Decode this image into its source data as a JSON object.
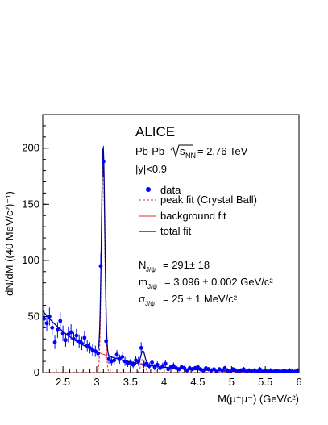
{
  "chart_data": {
    "type": "scatter",
    "experiment": "ALICE",
    "system": "Pb-Pb",
    "energy_symbol": "s",
    "energy_sub": "NN",
    "energy_value": "= 2.76 TeV",
    "rapidity": "|y|<0.9",
    "xlabel": "M(μ⁺μ⁻) (GeV/c²)",
    "ylabel": "dN/dM ((40 MeV/c²)⁻¹)",
    "xlim": [
      2.2,
      6.0
    ],
    "ylim": [
      0,
      230
    ],
    "xticks": [
      2.5,
      3,
      3.5,
      4,
      4.5,
      5,
      5.5,
      6
    ],
    "xtick_labels": [
      "2.5",
      "3",
      "3.5",
      "4",
      "4.5",
      "5",
      "5.5",
      "6"
    ],
    "yticks": [
      0,
      50,
      100,
      150,
      200
    ],
    "ytick_labels": [
      "0",
      "50",
      "100",
      "150",
      "200"
    ],
    "legend": [
      {
        "label": "data",
        "style": "marker",
        "color": "#0000ff"
      },
      {
        "label": "peak fit (Crystal Ball)",
        "style": "dashed",
        "color": "#e03030"
      },
      {
        "label": "background fit",
        "style": "solid",
        "color": "#e03030"
      },
      {
        "label": "total fit",
        "style": "solid",
        "color": "#000080"
      }
    ],
    "legend_position": "top-right",
    "results": {
      "n_label": "N",
      "n_sub": "J/ψ",
      "n_value": "= 291± 18",
      "m_label": "m",
      "m_sub": "J/ψ",
      "m_value": "= 3.096 ± 0.002 GeV/c²",
      "s_label": "σ",
      "s_sub": "J/ψ",
      "s_value": "= 25 ± 1 MeV/c²"
    },
    "series": [
      {
        "name": "data",
        "x": [
          2.22,
          2.26,
          2.3,
          2.34,
          2.38,
          2.42,
          2.46,
          2.5,
          2.54,
          2.58,
          2.62,
          2.66,
          2.7,
          2.74,
          2.78,
          2.82,
          2.86,
          2.9,
          2.94,
          2.98,
          3.02,
          3.06,
          3.1,
          3.14,
          3.18,
          3.22,
          3.26,
          3.3,
          3.34,
          3.38,
          3.42,
          3.46,
          3.5,
          3.54,
          3.58,
          3.62,
          3.66,
          3.7,
          3.74,
          3.78,
          3.82,
          3.86,
          3.9,
          3.94,
          3.98,
          4.02,
          4.06,
          4.1,
          4.14,
          4.18,
          4.22,
          4.26,
          4.3,
          4.34,
          4.38,
          4.42,
          4.46,
          4.5,
          4.54,
          4.58,
          4.62,
          4.66,
          4.7,
          4.74,
          4.78,
          4.82,
          4.86,
          4.9,
          4.94,
          4.98,
          5.02,
          5.06,
          5.1,
          5.14,
          5.18,
          5.22,
          5.26,
          5.3,
          5.34,
          5.38,
          5.42,
          5.46,
          5.5,
          5.54,
          5.58,
          5.62,
          5.66,
          5.7,
          5.74,
          5.78,
          5.82,
          5.86,
          5.9,
          5.94,
          5.98
        ],
        "y": [
          48,
          44,
          50,
          40,
          27,
          38,
          46,
          35,
          29,
          34,
          36,
          30,
          33,
          28,
          26,
          31,
          24,
          22,
          20,
          19,
          17,
          95,
          188,
          28,
          12,
          10,
          11,
          16,
          12,
          14,
          10,
          8,
          9,
          7,
          11,
          10,
          22,
          7,
          8,
          6,
          9,
          5,
          7,
          4,
          6,
          8,
          3,
          5,
          6,
          4,
          3,
          5,
          4,
          2,
          4,
          3,
          4,
          5,
          3,
          2,
          4,
          3,
          2,
          3,
          1,
          3,
          2,
          4,
          2,
          1,
          3,
          2,
          1,
          2,
          3,
          1,
          2,
          1,
          2,
          1,
          3,
          1,
          2,
          1,
          2,
          1,
          2,
          1,
          1,
          2,
          1,
          2,
          1,
          1,
          2
        ],
        "yerr": [
          8,
          7,
          8,
          7,
          6,
          7,
          8,
          7,
          6,
          7,
          7,
          6,
          6,
          6,
          6,
          6,
          5,
          5,
          5,
          5,
          5,
          11,
          14,
          6,
          4,
          4,
          4,
          4,
          4,
          4,
          4,
          3,
          3,
          3,
          4,
          4,
          5,
          3,
          3,
          3,
          3,
          3,
          3,
          2,
          3,
          3,
          2,
          2,
          3,
          2,
          2,
          2,
          2,
          2,
          2,
          2,
          2,
          2,
          2,
          2,
          2,
          2,
          2,
          2,
          1,
          2,
          2,
          2,
          2,
          1,
          2,
          2,
          1,
          2,
          2,
          1,
          2,
          1,
          2,
          1,
          2,
          1,
          2,
          1,
          2,
          1,
          2,
          1,
          1,
          2,
          1,
          2,
          1,
          1,
          2
        ]
      },
      {
        "name": "total fit",
        "background": {
          "amplitude": 55,
          "slope": 1.35,
          "x0": 2.2
        },
        "peaks": [
          {
            "mean": 3.096,
            "sigma": 0.025,
            "amplitude": 184
          },
          {
            "mean": 3.686,
            "sigma": 0.03,
            "amplitude": 12
          }
        ]
      }
    ]
  }
}
